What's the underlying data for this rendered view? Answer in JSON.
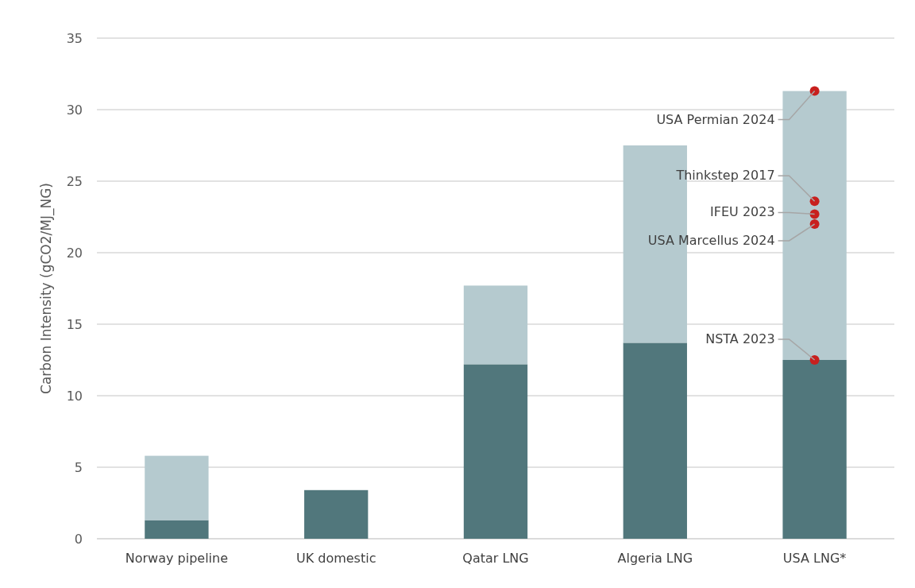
{
  "chart_data": {
    "type": "bar",
    "stacked": true,
    "ylabel": "Carbon Intensity (gCO2/MJ_NG)",
    "categories": [
      "Norway pipeline",
      "UK domestic",
      "Qatar LNG",
      "Algeria LNG",
      "USA LNG*"
    ],
    "series": [
      {
        "color": "#51777c",
        "values": [
          1.3,
          3.4,
          12.2,
          13.7,
          12.5
        ]
      },
      {
        "color": "#b5cacf",
        "values": [
          4.5,
          0,
          5.5,
          13.8,
          18.8
        ]
      },
      {
        "type": "scatter",
        "color": "#c8201e",
        "x": [
          "USA LNG*",
          "USA LNG*",
          "USA LNG*",
          "USA LNG*",
          "USA LNG*"
        ],
        "values": [
          31.3,
          23.6,
          22.7,
          22.0,
          12.5
        ]
      }
    ],
    "annotations": [
      {
        "text": "USA Permian 2024",
        "x": "USA LNG*",
        "y": 31.3
      },
      {
        "text": "Thinkstep 2017",
        "x": "USA LNG*",
        "y": 23.6
      },
      {
        "text": "IFEU 2023",
        "x": "USA LNG*",
        "y": 22.7
      },
      {
        "text": "USA Marcellus 2024",
        "x": "USA LNG*",
        "y": 22.0
      },
      {
        "text": "NSTA 2023",
        "x": "USA LNG*",
        "y": 12.5
      }
    ],
    "ylim": [
      0,
      35
    ],
    "yticks": [
      0,
      5,
      10,
      15,
      20,
      25,
      30,
      35
    ],
    "grid": "y",
    "marker": "circle"
  }
}
